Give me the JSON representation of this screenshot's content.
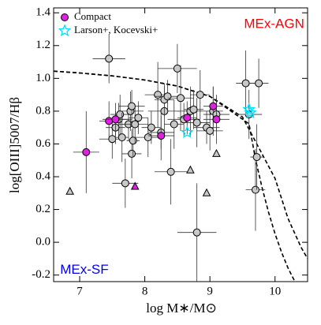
{
  "chart_data": {
    "type": "scatter",
    "xlabel": "log M∗/M⊙",
    "ylabel": "log[OIII]5007/Hβ",
    "annotations": [
      {
        "text": "MEx-AGN",
        "color": "#ff0000",
        "x": 10.45,
        "y": 1.33,
        "anchor": "end"
      },
      {
        "text": "MEx-SF",
        "color": "#0000ee",
        "x": 6.7,
        "y": -0.17,
        "anchor": "start"
      }
    ],
    "xlim": [
      6.6,
      10.5
    ],
    "ylim": [
      -0.24,
      1.43
    ],
    "xticks": [
      7,
      8,
      9,
      10
    ],
    "yticks": [
      -0.2,
      {
        "value": 0,
        "label": "0.0"
      },
      0.2,
      0.4,
      0.6,
      0.8,
      {
        "value": 1,
        "label": "1.0"
      },
      1.2,
      1.4
    ],
    "series": [
      {
        "marker": "line",
        "color": "#000000",
        "x": [
          6.6,
          7,
          7.5,
          8,
          8.5,
          9,
          9.5,
          10,
          10.2,
          10.4,
          10.5
        ],
        "values": [
          1.044,
          1.033,
          1.015,
          0.99,
          0.953,
          0.89,
          0.765,
          0.39,
          0.145,
          -0.03,
          -0.1
        ]
      },
      {
        "marker": "line",
        "color": "#000000",
        "x": [
          6.6,
          7,
          7.5,
          8,
          8.5,
          9,
          9.6,
          9.7,
          9.8,
          9.9,
          10,
          10.1,
          10.2,
          10.3
        ],
        "values": [
          1.044,
          1.033,
          1.015,
          0.99,
          0.953,
          0.89,
          0.723,
          0.508,
          0.335,
          0.183,
          0.052,
          -0.061,
          -0.157,
          -0.236
        ]
      },
      {
        "marker": "circle",
        "color": "#c8c8c8",
        "x": [
          7.45,
          7.5,
          7.55,
          7.6,
          7.62,
          7.65,
          7.7,
          7.75,
          7.78,
          7.8,
          7.8,
          7.82,
          7.85,
          7.9,
          8.05,
          8.1,
          8.2,
          8.25,
          8.3,
          8.3,
          8.35,
          8.4,
          8.45,
          8.5,
          8.55,
          8.6,
          8.7,
          8.75,
          8.8,
          8.8,
          8.85,
          8.95,
          9.0,
          9.05,
          9.1,
          9.55,
          9.6,
          9.7,
          9.72,
          9.75
        ],
        "values": [
          1.12,
          0.63,
          0.7,
          0.75,
          0.78,
          0.64,
          0.36,
          0.72,
          0.8,
          0.83,
          0.54,
          0.62,
          0.72,
          0.76,
          0.64,
          0.7,
          0.9,
          0.67,
          0.8,
          0.87,
          0.89,
          0.43,
          0.72,
          1.06,
          0.88,
          0.75,
          0.8,
          0.81,
          0.06,
          0.73,
          0.9,
          0.7,
          0.68,
          0.8,
          0.78,
          0.97,
          0.78,
          0.32,
          0.52,
          0.97
        ],
        "xerr": [
          0.25,
          0.2,
          0.15,
          0.2,
          0.15,
          0.1,
          0.2,
          0.15,
          0.2,
          0.2,
          0.15,
          0.1,
          0.2,
          0.15,
          0.2,
          0.15,
          0.2,
          0.2,
          0.25,
          0.15,
          0.2,
          0.25,
          0.15,
          0.3,
          0.2,
          0.25,
          0.2,
          0.15,
          0.3,
          0.2,
          0.15,
          0.2,
          0.2,
          0.15,
          0.2,
          0.15,
          0.2,
          0.15,
          0.1,
          0.15
        ],
        "yerr": [
          0.15,
          0.12,
          0.1,
          0.1,
          0.12,
          0.15,
          0.15,
          0.1,
          0.12,
          0.1,
          0.15,
          0.1,
          0.12,
          0.1,
          0.12,
          0.1,
          0.2,
          0.1,
          0.15,
          0.1,
          0.1,
          0.2,
          0.15,
          0.15,
          0.2,
          0.1,
          0.15,
          0.12,
          0.3,
          0.15,
          0.15,
          0.1,
          0.12,
          0.15,
          0.1,
          0.2,
          0.15,
          0.25,
          0.2,
          0.15
        ]
      },
      {
        "marker": "triangle",
        "color": "#c8c8c8",
        "x": [
          6.85,
          8.7,
          8.95,
          9.1
        ],
        "values": [
          0.31,
          0.44,
          0.3,
          0.54
        ]
      },
      {
        "marker": "triangle",
        "color": "#e020e0",
        "x": [
          7.85
        ],
        "values": [
          0.34
        ]
      },
      {
        "name": "Compact",
        "marker": "circle",
        "color": "#e020e0",
        "x": [
          7.1,
          7.45,
          7.55,
          8.25,
          8.65,
          9.05,
          9.1
        ],
        "values": [
          0.55,
          0.74,
          0.75,
          0.65,
          0.76,
          0.83,
          0.75
        ],
        "xerr": [
          0.2,
          0.15,
          0.2,
          0.2,
          0.15,
          0.15,
          0.2
        ],
        "yerr": [
          0.25,
          0.12,
          0.1,
          0.15,
          0.1,
          0.12,
          0.15
        ]
      },
      {
        "name": "Larson+, Kocevski+",
        "marker": "star",
        "color": "#00e0ff",
        "x": [
          8.65,
          9.6,
          9.62
        ],
        "values": [
          0.67,
          0.81,
          0.79
        ]
      }
    ]
  }
}
